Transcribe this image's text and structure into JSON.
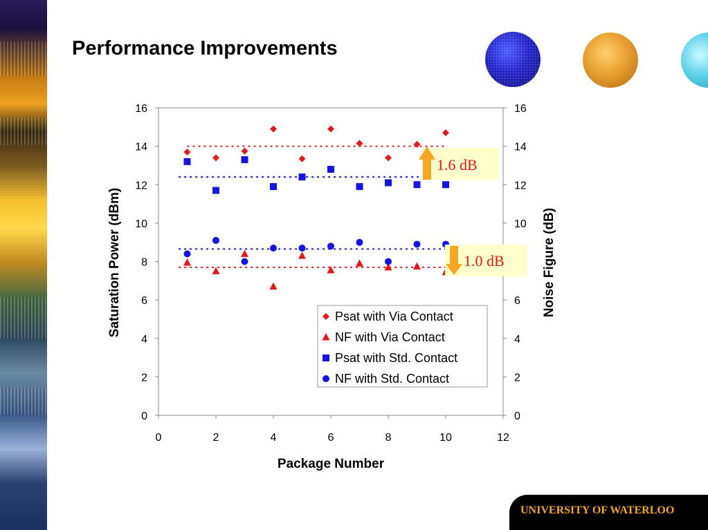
{
  "slide": {
    "title": "Performance Improvements",
    "footer": "UNIVERSITY OF WATERLOO"
  },
  "colors": {
    "red": "#e8161b",
    "blue": "#1414e6",
    "callout_bg": "#ffffcc",
    "arrow": "#f5a623",
    "footer_text": "#f5a623"
  },
  "chart_data": {
    "type": "scatter",
    "xlabel": "Package Number",
    "ylabel": "Saturation Power (dBm)",
    "y2label": "Noise Figure (dB)",
    "xlim": [
      0,
      12
    ],
    "ylim": [
      0,
      16
    ],
    "y2lim": [
      0,
      16
    ],
    "xticks": [
      0,
      2,
      4,
      6,
      8,
      10,
      12
    ],
    "yticks": [
      0,
      2,
      4,
      6,
      8,
      10,
      12,
      14,
      16
    ],
    "legend_position": "lower-right",
    "series": [
      {
        "name": "Psat with Via Contact",
        "marker": "diamond",
        "color": "#e8161b",
        "x": [
          1,
          2,
          3,
          4,
          5,
          6,
          7,
          8,
          9,
          10
        ],
        "y": [
          13.7,
          13.4,
          13.75,
          14.9,
          13.35,
          14.9,
          14.15,
          13.4,
          14.1,
          14.7
        ]
      },
      {
        "name": "NF with Via Contact",
        "marker": "triangle",
        "color": "#e8161b",
        "x": [
          1,
          2,
          3,
          4,
          5,
          6,
          7,
          8,
          9,
          10
        ],
        "y": [
          7.95,
          7.5,
          8.4,
          6.7,
          8.3,
          7.55,
          7.9,
          7.7,
          7.75,
          7.45
        ]
      },
      {
        "name": "Psat with Std. Contact",
        "marker": "square",
        "color": "#1414e6",
        "x": [
          1,
          2,
          3,
          4,
          5,
          6,
          7,
          8,
          9,
          10
        ],
        "y": [
          13.2,
          11.7,
          13.3,
          11.9,
          12.4,
          12.8,
          11.9,
          12.1,
          12.0,
          12.0
        ]
      },
      {
        "name": "NF with Std. Contact",
        "marker": "circle",
        "color": "#1414e6",
        "x": [
          1,
          2,
          3,
          4,
          5,
          6,
          7,
          8,
          9,
          10
        ],
        "y": [
          8.4,
          9.1,
          8.0,
          8.7,
          8.7,
          8.8,
          9.0,
          8.0,
          8.9,
          8.9
        ]
      }
    ],
    "reference_lines": [
      {
        "y": 14.0,
        "x": [
          1,
          10
        ],
        "color": "#e8161b",
        "style": "dotted"
      },
      {
        "y": 12.4,
        "x": [
          0.7,
          10
        ],
        "color": "#1414e6",
        "style": "dotted"
      },
      {
        "y": 8.65,
        "x": [
          0.7,
          10
        ],
        "color": "#1414e6",
        "style": "dotted"
      },
      {
        "y": 7.7,
        "x": [
          0.7,
          10
        ],
        "color": "#e8161b",
        "style": "dotted"
      }
    ],
    "annotations": [
      {
        "text": "1.6 dB",
        "arrow": "up"
      },
      {
        "text": "1.0 dB",
        "arrow": "down"
      }
    ]
  }
}
